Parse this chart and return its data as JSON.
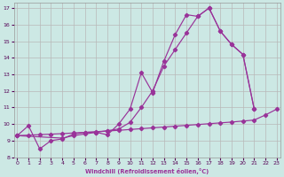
{
  "xlabel": "Windchill (Refroidissement éolien,°C)",
  "bg_color": "#cce8e4",
  "grid_color": "#b8b8b8",
  "line_color": "#993399",
  "xlim": [
    -0.3,
    23.3
  ],
  "ylim": [
    8,
    17.3
  ],
  "xticks": [
    0,
    1,
    2,
    3,
    4,
    5,
    6,
    7,
    8,
    9,
    10,
    11,
    12,
    13,
    14,
    15,
    16,
    17,
    18,
    19,
    20,
    21,
    22,
    23
  ],
  "yticks": [
    8,
    9,
    10,
    11,
    12,
    13,
    14,
    15,
    16,
    17
  ],
  "line1_x": [
    0,
    1,
    2,
    3,
    4,
    5,
    6,
    7,
    8,
    9,
    10,
    11,
    12,
    13,
    14,
    15,
    16,
    17,
    18,
    19,
    20,
    21
  ],
  "line1_y": [
    9.3,
    9.9,
    8.5,
    9.0,
    9.1,
    9.4,
    9.5,
    9.5,
    9.35,
    10.0,
    10.9,
    13.1,
    11.9,
    13.8,
    15.4,
    16.6,
    16.5,
    17.0,
    15.6,
    14.8,
    14.2,
    10.9
  ],
  "line2_x": [
    0,
    4,
    5,
    6,
    7,
    8,
    9,
    10,
    11,
    12,
    13,
    14,
    15,
    16,
    17,
    18,
    19,
    20,
    21
  ],
  "line2_y": [
    9.3,
    9.15,
    9.3,
    9.4,
    9.5,
    9.6,
    9.7,
    10.1,
    11.0,
    12.0,
    13.5,
    14.5,
    15.5,
    16.5,
    17.0,
    15.6,
    14.8,
    14.2,
    10.9
  ],
  "line3_x": [
    0,
    1,
    2,
    3,
    4,
    5,
    6,
    7,
    8,
    9,
    10,
    11,
    12,
    13,
    14,
    15,
    16,
    17,
    18,
    19,
    20,
    21,
    22,
    23
  ],
  "line3_y": [
    9.3,
    9.33,
    9.36,
    9.39,
    9.42,
    9.46,
    9.5,
    9.54,
    9.58,
    9.62,
    9.67,
    9.72,
    9.77,
    9.82,
    9.87,
    9.92,
    9.97,
    10.02,
    10.07,
    10.12,
    10.18,
    10.24,
    10.55,
    10.9
  ]
}
